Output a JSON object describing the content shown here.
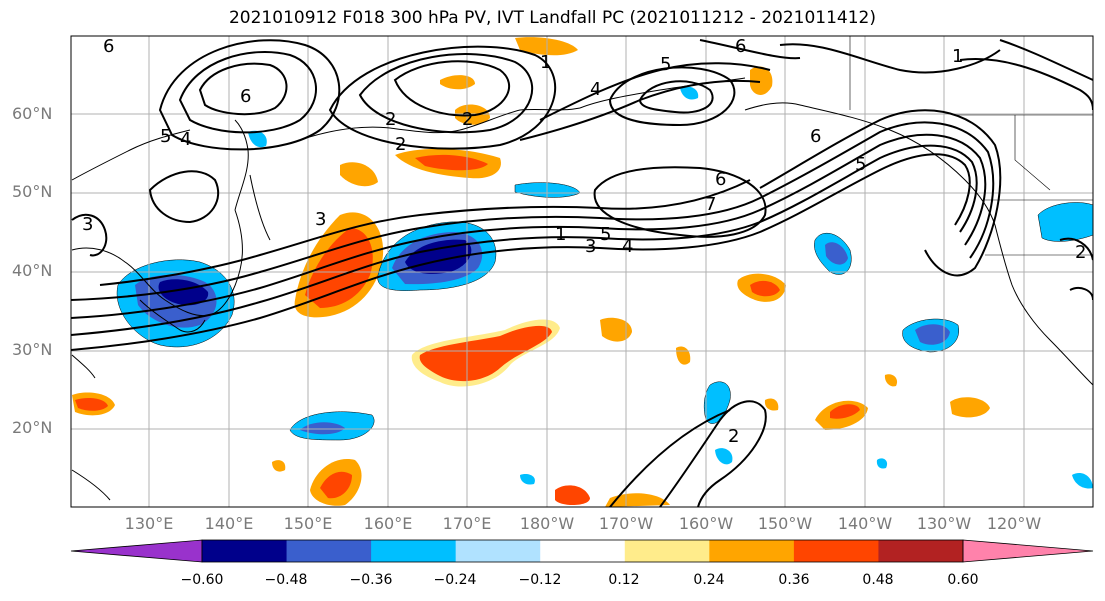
{
  "title": "2021010912 F018 300 hPa PV, IVT Landfall PC (2021011212 - 2021011412)",
  "lat_labels": [
    "60°N",
    "50°N",
    "40°N",
    "30°N",
    "20°N"
  ],
  "lon_labels": [
    "130°E",
    "140°E",
    "150°E",
    "160°E",
    "170°E",
    "180°W",
    "170°W",
    "160°W",
    "150°W",
    "140°W",
    "130°W",
    "120°W"
  ],
  "colorbar": {
    "colors": [
      "#9932cc",
      "#00008b",
      "#3a5fcd",
      "#00bfff",
      "#b0e2ff",
      "#ffffff",
      "#ffec8b",
      "#ffa500",
      "#ff4500",
      "#b22222",
      "#ff82ab"
    ],
    "tick_labels": [
      "−0.60",
      "−0.48",
      "−0.36",
      "−0.24",
      "−0.12",
      "0.12",
      "0.24",
      "0.36",
      "0.48",
      "0.60"
    ]
  },
  "contour_labels": [
    "6",
    "5",
    "4",
    "3",
    "2",
    "1",
    "6",
    "6",
    "5",
    "7",
    "6",
    "5",
    "4",
    "3",
    "2",
    "1",
    "2",
    "3",
    "4",
    "5",
    "6",
    "2",
    "2",
    "1"
  ]
}
